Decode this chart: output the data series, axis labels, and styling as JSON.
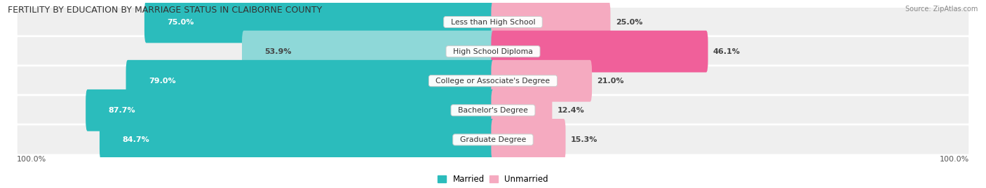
{
  "title": "FERTILITY BY EDUCATION BY MARRIAGE STATUS IN CLAIBORNE COUNTY",
  "source": "Source: ZipAtlas.com",
  "categories": [
    "Less than High School",
    "High School Diploma",
    "College or Associate's Degree",
    "Bachelor's Degree",
    "Graduate Degree"
  ],
  "married": [
    75.0,
    53.9,
    79.0,
    87.7,
    84.7
  ],
  "unmarried": [
    25.0,
    46.1,
    21.0,
    12.4,
    15.3
  ],
  "married_color_full": "#2bbcbc",
  "married_color_light": "#8ed8d8",
  "unmarried_color_full": "#f0609a",
  "unmarried_color_light": "#f5aac0",
  "figsize": [
    14.06,
    2.69
  ],
  "dpi": 100,
  "married_threshold": 70,
  "unmarried_threshold": 30
}
